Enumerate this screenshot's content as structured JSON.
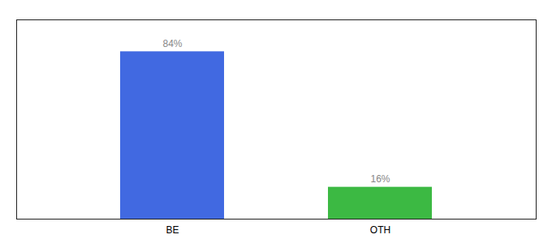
{
  "chart_data": {
    "type": "bar",
    "categories": [
      "BE",
      "OTH"
    ],
    "values": [
      84,
      16
    ],
    "value_labels": [
      "84%",
      "16%"
    ],
    "colors": [
      "#4169E1",
      "#3CB943"
    ],
    "ylim": [
      0,
      100
    ],
    "data_labels": true,
    "tick_labels": "x",
    "grid": false
  }
}
